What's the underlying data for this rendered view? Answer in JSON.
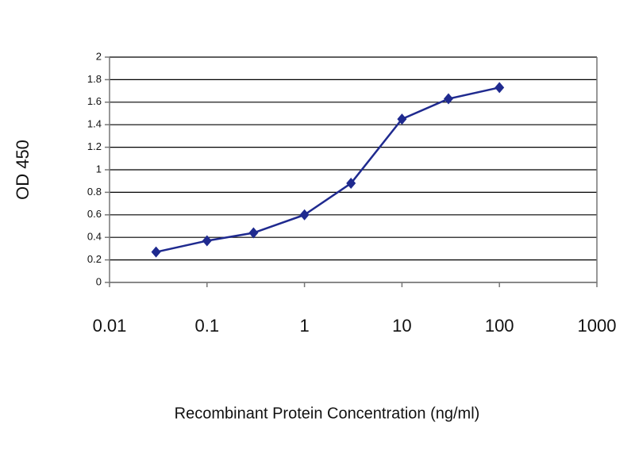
{
  "chart_data": {
    "type": "line",
    "x_label": "Recombinant Protein Concentration (ng/ml)",
    "y_label": "OD 450",
    "x": [
      0.03,
      0.1,
      0.3,
      1,
      3,
      10,
      30,
      100
    ],
    "series": [
      {
        "name": "OD 450",
        "color": "#1f2a8f",
        "values": [
          0.27,
          0.37,
          0.44,
          0.6,
          0.88,
          1.45,
          1.63,
          1.73
        ]
      }
    ],
    "xscale": "log",
    "xlim": [
      0.01,
      1000
    ],
    "xticks": [
      0.01,
      0.1,
      1,
      10,
      100,
      1000
    ],
    "ylim": [
      0,
      2
    ],
    "yticks": [
      0,
      0.2,
      0.4,
      0.6,
      0.8,
      1,
      1.2,
      1.4,
      1.6,
      1.8,
      2
    ],
    "grid": true
  }
}
